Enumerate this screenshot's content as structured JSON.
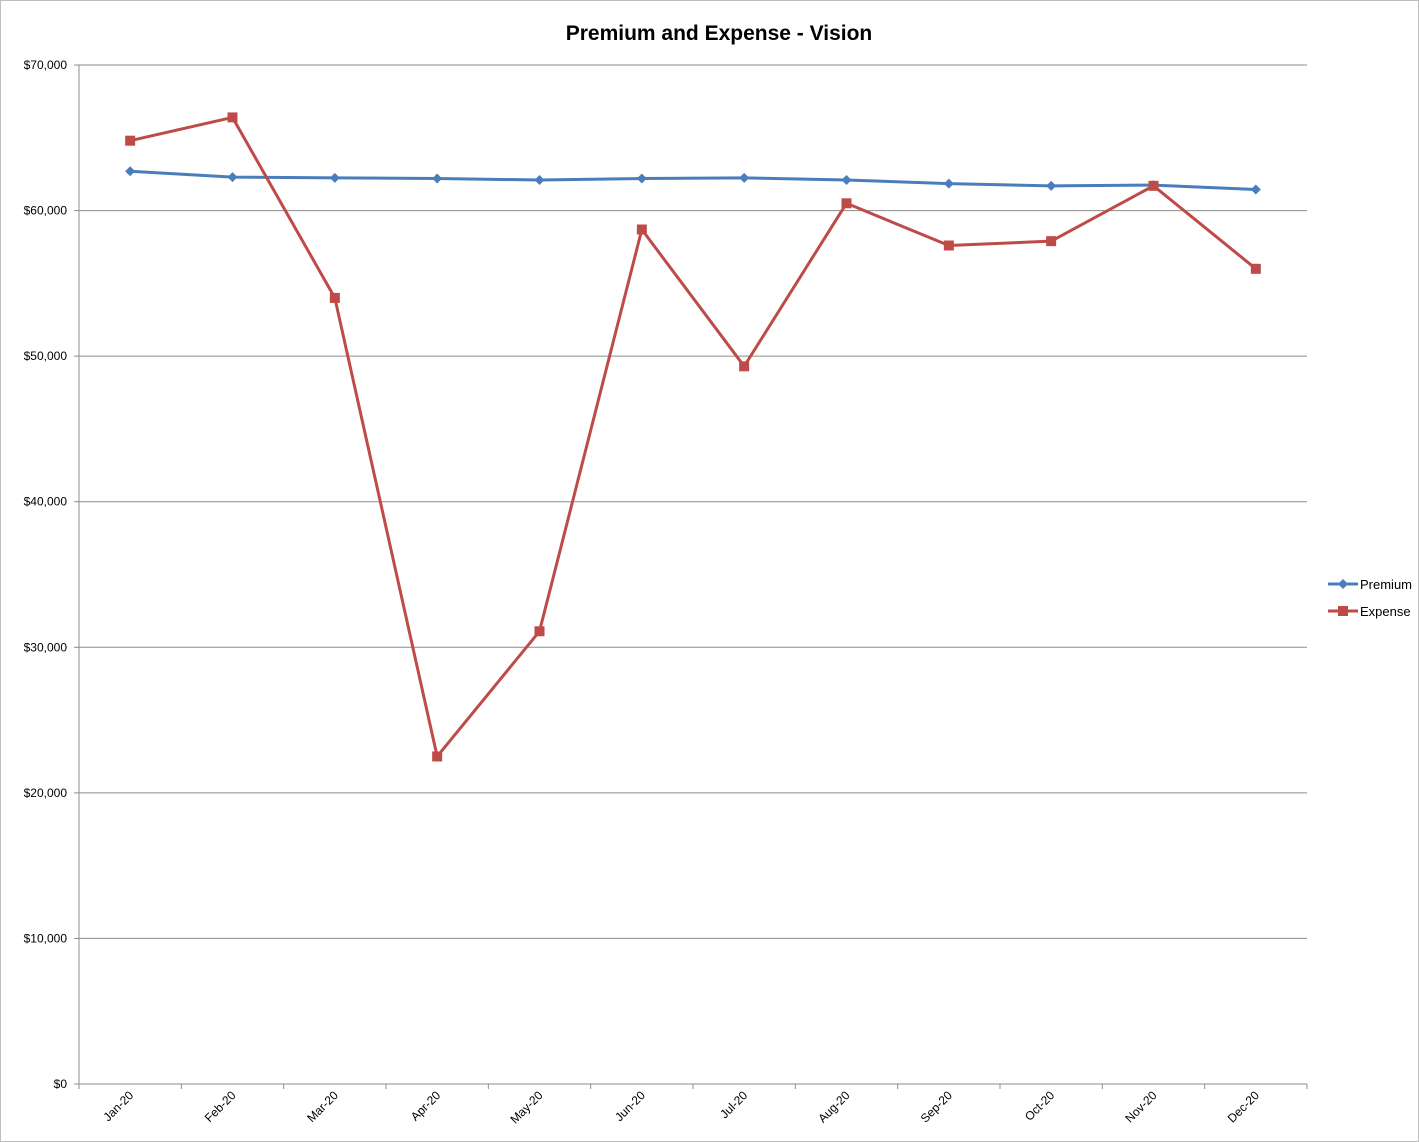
{
  "chart_data": {
    "type": "line",
    "title": "Premium and Expense - Vision",
    "xlabel": "",
    "ylabel": "",
    "categories": [
      "Jan-20",
      "Feb-20",
      "Mar-20",
      "Apr-20",
      "May-20",
      "Jun-20",
      "Jul-20",
      "Aug-20",
      "Sep-20",
      "Oct-20",
      "Nov-20",
      "Dec-20"
    ],
    "series": [
      {
        "name": "Premium",
        "color": "#4a7ebb",
        "marker": "diamond",
        "values": [
          62700,
          62300,
          62250,
          62200,
          62100,
          62200,
          62250,
          62100,
          61850,
          61700,
          61750,
          61450
        ]
      },
      {
        "name": "Expense",
        "color": "#be4b48",
        "marker": "square",
        "values": [
          64800,
          66400,
          54000,
          22500,
          31100,
          58700,
          49300,
          60500,
          57600,
          57900,
          61700,
          56000
        ]
      }
    ],
    "ylim": [
      0,
      70000
    ],
    "y_ticks": [
      0,
      10000,
      20000,
      30000,
      40000,
      50000,
      60000,
      70000
    ],
    "y_tick_labels": [
      "$0",
      "$10,000",
      "$20,000",
      "$30,000",
      "$40,000",
      "$50,000",
      "$60,000",
      "$70,000"
    ],
    "grid": true,
    "legend_position": "right"
  }
}
